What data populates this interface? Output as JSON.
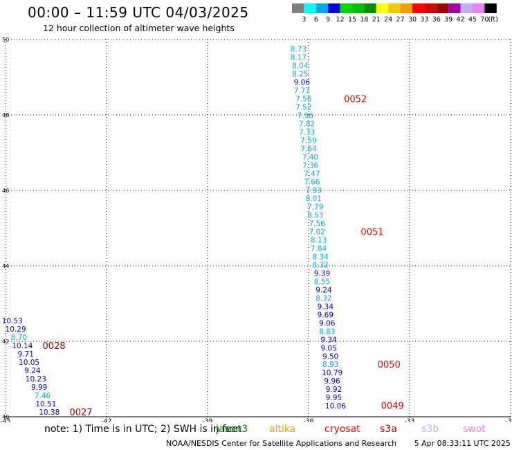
{
  "header": {
    "title": "00:00 – 11:59 UTC 04/03/2025",
    "subtitle": "12 hour collection of altimeter wave heights"
  },
  "color_scale": {
    "labels": [
      "3",
      "6",
      "9",
      "12",
      "15",
      "18",
      "21",
      "24",
      "27",
      "30",
      "33",
      "36",
      "39",
      "42",
      "45",
      "70"
    ],
    "colors": [
      "#7f7f7f",
      "#00ffff",
      "#00a8e8",
      "#0000e0",
      "#00d800",
      "#00c000",
      "#009000",
      "#ffff00",
      "#f0c800",
      "#f0a000",
      "#ff0000",
      "#d80000",
      "#a00000",
      "#a000a0",
      "#c0b0f0",
      "#f080f0",
      "#000000"
    ],
    "unit": "(ft)"
  },
  "chart_data": {
    "type": "scatter",
    "title": "00:00 – 11:59 UTC 04/03/2025",
    "subtitle": "12 hour collection of altimeter wave heights",
    "xlim": [
      -45,
      -30
    ],
    "ylim": [
      40,
      50
    ],
    "x_ticks": [
      "-45",
      "-42",
      "-39",
      "-36",
      "-33",
      "-30"
    ],
    "y_ticks": [
      "40",
      "42",
      "44",
      "46",
      "48",
      "50"
    ],
    "grid": true,
    "series": [
      {
        "color_key": "jason/left",
        "points": [
          {
            "lon": -44.8,
            "lat": 42.55,
            "swh": "10.53",
            "color": "#0000c0"
          },
          {
            "lon": -44.7,
            "lat": 42.33,
            "swh": "10.29",
            "color": "#0000c0"
          },
          {
            "lon": -44.6,
            "lat": 42.11,
            "swh": "8.70",
            "color": "#00a8e8"
          },
          {
            "lon": -44.5,
            "lat": 41.89,
            "swh": "10.14",
            "color": "#0000c0"
          },
          {
            "lon": -44.4,
            "lat": 41.67,
            "swh": "9.71",
            "color": "#0000c0"
          },
          {
            "lon": -44.3,
            "lat": 41.45,
            "swh": "10.05",
            "color": "#0000c0"
          },
          {
            "lon": -44.2,
            "lat": 41.23,
            "swh": "9.24",
            "color": "#0000c0"
          },
          {
            "lon": -44.1,
            "lat": 41.01,
            "swh": "10.23",
            "color": "#0000c0"
          },
          {
            "lon": -44.0,
            "lat": 40.79,
            "swh": "9.99",
            "color": "#0000c0"
          },
          {
            "lon": -43.9,
            "lat": 40.57,
            "swh": "7.46",
            "color": "#00a8e8"
          },
          {
            "lon": -43.8,
            "lat": 40.35,
            "swh": "10.51",
            "color": "#0000c0"
          },
          {
            "lon": -43.7,
            "lat": 40.13,
            "swh": "10.38",
            "color": "#0000c0"
          }
        ]
      },
      {
        "color_key": "pass/right",
        "points": [
          {
            "lon": -36.3,
            "lat": 49.75,
            "swh": "8.73",
            "color": "#00a8e8"
          },
          {
            "lon": -36.3,
            "lat": 49.53,
            "swh": "8.17",
            "color": "#00a8e8"
          },
          {
            "lon": -36.25,
            "lat": 49.31,
            "swh": "8.04",
            "color": "#00a8e8"
          },
          {
            "lon": -36.25,
            "lat": 49.09,
            "swh": "8.25",
            "color": "#00a8e8"
          },
          {
            "lon": -36.2,
            "lat": 48.87,
            "swh": "9.06",
            "color": "#0000c0"
          },
          {
            "lon": -36.2,
            "lat": 48.65,
            "swh": "7.77",
            "color": "#00a8e8"
          },
          {
            "lon": -36.15,
            "lat": 48.43,
            "swh": "7.56",
            "color": "#00a8e8"
          },
          {
            "lon": -36.15,
            "lat": 48.21,
            "swh": "7.52",
            "color": "#00a8e8"
          },
          {
            "lon": -36.1,
            "lat": 47.99,
            "swh": "7.96",
            "color": "#00a8e8"
          },
          {
            "lon": -36.05,
            "lat": 47.77,
            "swh": "7.82",
            "color": "#00a8e8"
          },
          {
            "lon": -36.05,
            "lat": 47.55,
            "swh": "7.33",
            "color": "#00a8e8"
          },
          {
            "lon": -36.0,
            "lat": 47.33,
            "swh": "7.59",
            "color": "#00a8e8"
          },
          {
            "lon": -36.0,
            "lat": 47.11,
            "swh": "7.64",
            "color": "#00a8e8"
          },
          {
            "lon": -35.95,
            "lat": 46.89,
            "swh": "7.40",
            "color": "#00a8e8"
          },
          {
            "lon": -35.95,
            "lat": 46.67,
            "swh": "7.36",
            "color": "#00a8e8"
          },
          {
            "lon": -35.9,
            "lat": 46.45,
            "swh": "7.47",
            "color": "#00a8e8"
          },
          {
            "lon": -35.9,
            "lat": 46.23,
            "swh": "7.66",
            "color": "#00a8e8"
          },
          {
            "lon": -35.85,
            "lat": 46.01,
            "swh": "7.93",
            "color": "#00a8e8"
          },
          {
            "lon": -35.85,
            "lat": 45.79,
            "swh": "8.01",
            "color": "#00a8e8"
          },
          {
            "lon": -35.8,
            "lat": 45.57,
            "swh": "7.79",
            "color": "#00a8e8"
          },
          {
            "lon": -35.8,
            "lat": 45.35,
            "swh": "8.53",
            "color": "#00a8e8"
          },
          {
            "lon": -35.75,
            "lat": 45.13,
            "swh": "7.56",
            "color": "#00a8e8"
          },
          {
            "lon": -35.75,
            "lat": 44.91,
            "swh": "7.02",
            "color": "#00a8e8"
          },
          {
            "lon": -35.7,
            "lat": 44.69,
            "swh": "8.13",
            "color": "#00a8e8"
          },
          {
            "lon": -35.7,
            "lat": 44.47,
            "swh": "7.84",
            "color": "#00a8e8"
          },
          {
            "lon": -35.65,
            "lat": 44.25,
            "swh": "8.34",
            "color": "#00a8e8"
          },
          {
            "lon": -35.65,
            "lat": 44.03,
            "swh": "8.32",
            "color": "#00a8e8"
          },
          {
            "lon": -35.6,
            "lat": 43.81,
            "swh": "9.39",
            "color": "#0000c0"
          },
          {
            "lon": -35.6,
            "lat": 43.59,
            "swh": "8.55",
            "color": "#00a8e8"
          },
          {
            "lon": -35.55,
            "lat": 43.37,
            "swh": "9.24",
            "color": "#0000c0"
          },
          {
            "lon": -35.55,
            "lat": 43.15,
            "swh": "8.32",
            "color": "#00a8e8"
          },
          {
            "lon": -35.5,
            "lat": 42.93,
            "swh": "9.34",
            "color": "#0000c0"
          },
          {
            "lon": -35.5,
            "lat": 42.71,
            "swh": "9.69",
            "color": "#0000c0"
          },
          {
            "lon": -35.45,
            "lat": 42.49,
            "swh": "9.06",
            "color": "#0000c0"
          },
          {
            "lon": -35.45,
            "lat": 42.27,
            "swh": "8.83",
            "color": "#00a8e8"
          },
          {
            "lon": -35.4,
            "lat": 42.05,
            "swh": "9.34",
            "color": "#0000c0"
          },
          {
            "lon": -35.4,
            "lat": 41.83,
            "swh": "9.05",
            "color": "#0000c0"
          },
          {
            "lon": -35.35,
            "lat": 41.61,
            "swh": "9.50",
            "color": "#0000c0"
          },
          {
            "lon": -35.35,
            "lat": 41.39,
            "swh": "8.93",
            "color": "#00a8e8"
          },
          {
            "lon": -35.3,
            "lat": 41.17,
            "swh": "10.79",
            "color": "#0000c0"
          },
          {
            "lon": -35.3,
            "lat": 40.95,
            "swh": "9.96",
            "color": "#0000c0"
          },
          {
            "lon": -35.25,
            "lat": 40.73,
            "swh": "9.92",
            "color": "#0000c0"
          },
          {
            "lon": -35.25,
            "lat": 40.51,
            "swh": "9.95",
            "color": "#0000c0"
          },
          {
            "lon": -35.2,
            "lat": 40.29,
            "swh": "10.06",
            "color": "#0000c0"
          }
        ]
      }
    ],
    "time_labels": [
      {
        "text": "0052",
        "lon": -34.95,
        "lat": 48.43,
        "color": "#e00000"
      },
      {
        "text": "0051",
        "lon": -34.45,
        "lat": 44.91,
        "color": "#e00000"
      },
      {
        "text": "0050",
        "lon": -33.95,
        "lat": 41.39,
        "color": "#e00000"
      },
      {
        "text": "0049",
        "lon": -33.85,
        "lat": 40.3,
        "color": "#e00000"
      },
      {
        "text": "0028",
        "lon": -43.9,
        "lat": 41.89,
        "color": "#900000"
      },
      {
        "text": "0027",
        "lon": -43.1,
        "lat": 40.13,
        "color": "#900000"
      }
    ]
  },
  "note": {
    "prefix": "note: 1) Time is in UTC; 2) SWH is in feet",
    "legend": [
      {
        "name": "jason3",
        "color": "#008000"
      },
      {
        "name": "altika",
        "color": "#f0a000"
      },
      {
        "name": "cryosat",
        "color": "#ff0000"
      },
      {
        "name": "s3a",
        "color": "#b00000"
      },
      {
        "name": "s3b",
        "color": "#c0b0f0"
      },
      {
        "name": "swot",
        "color": "#f080f0"
      }
    ]
  },
  "footer": {
    "org": "NOAA/NESDIS Center for Satellite Applications and Research",
    "timestamp": "5 Apr 08:33:11 UTC 2025"
  }
}
